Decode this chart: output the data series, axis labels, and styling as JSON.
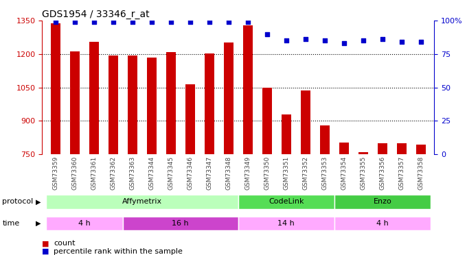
{
  "title": "GDS1954 / 33346_r_at",
  "samples": [
    "GSM73359",
    "GSM73360",
    "GSM73361",
    "GSM73362",
    "GSM73363",
    "GSM73344",
    "GSM73345",
    "GSM73346",
    "GSM73347",
    "GSM73348",
    "GSM73349",
    "GSM73350",
    "GSM73351",
    "GSM73352",
    "GSM73353",
    "GSM73354",
    "GSM73355",
    "GSM73356",
    "GSM73357",
    "GSM73358"
  ],
  "count_values": [
    1338,
    1213,
    1255,
    1192,
    1192,
    1185,
    1207,
    1063,
    1202,
    1252,
    1330,
    1048,
    930,
    1035,
    880,
    802,
    760,
    800,
    800,
    793
  ],
  "percentile_values": [
    99,
    99,
    99,
    99,
    99,
    99,
    99,
    99,
    99,
    99,
    99,
    90,
    85,
    86,
    85,
    83,
    85,
    86,
    84,
    84
  ],
  "ylim_left": [
    750,
    1350
  ],
  "ylim_right": [
    0,
    100
  ],
  "yticks_left": [
    750,
    900,
    1050,
    1200,
    1350
  ],
  "yticks_right": [
    0,
    25,
    50,
    75,
    100
  ],
  "bar_color": "#cc0000",
  "dot_color": "#0000cc",
  "protocol_groups": [
    {
      "label": "Affymetrix",
      "start": 0,
      "end": 9,
      "color": "#bbffbb"
    },
    {
      "label": "CodeLink",
      "start": 10,
      "end": 14,
      "color": "#55dd55"
    },
    {
      "label": "Enzo",
      "start": 15,
      "end": 19,
      "color": "#44cc44"
    }
  ],
  "time_groups": [
    {
      "label": "4 h",
      "start": 0,
      "end": 3,
      "color": "#ffaaff"
    },
    {
      "label": "16 h",
      "start": 4,
      "end": 9,
      "color": "#cc44cc"
    },
    {
      "label": "14 h",
      "start": 10,
      "end": 14,
      "color": "#ffaaff"
    },
    {
      "label": "4 h",
      "start": 15,
      "end": 19,
      "color": "#ffaaff"
    }
  ],
  "background_color": "#ffffff",
  "tick_label_color_left": "#cc0000",
  "tick_label_color_right": "#0000cc"
}
